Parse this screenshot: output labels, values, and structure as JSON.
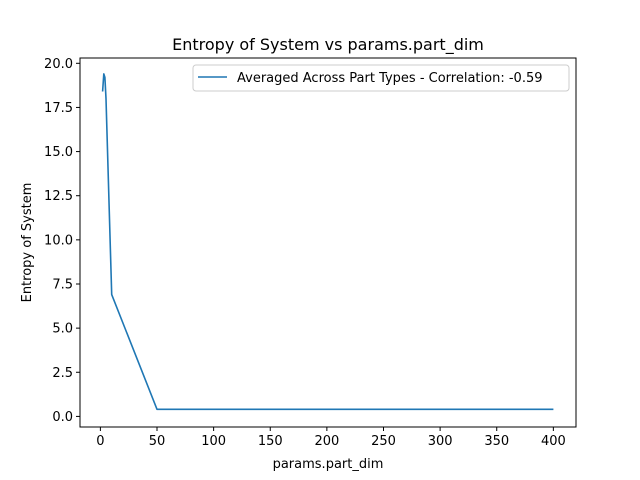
{
  "chart_data": {
    "type": "line",
    "title": "Entropy of System vs params.part_dim",
    "xlabel": "params.part_dim",
    "ylabel": "Entropy of System",
    "xlim": [
      -18,
      420
    ],
    "ylim": [
      -0.6,
      20.3
    ],
    "xticks": [
      0,
      50,
      100,
      150,
      200,
      250,
      300,
      350,
      400
    ],
    "xtick_labels": [
      "0",
      "50",
      "100",
      "150",
      "200",
      "250",
      "300",
      "350",
      "400"
    ],
    "yticks": [
      0.0,
      2.5,
      5.0,
      7.5,
      10.0,
      12.5,
      15.0,
      17.5,
      20.0
    ],
    "ytick_labels": [
      "0.0",
      "2.5",
      "5.0",
      "7.5",
      "10.0",
      "12.5",
      "15.0",
      "17.5",
      "20.0"
    ],
    "grid": false,
    "legend_position": "top-right",
    "series": [
      {
        "name": "Averaged Across Part Types - Correlation: -0.59",
        "color": "#1f77b4",
        "x": [
          2,
          3,
          4,
          5,
          10,
          50,
          100,
          200,
          400
        ],
        "y": [
          18.4,
          19.4,
          19.2,
          18.0,
          6.9,
          0.4,
          0.4,
          0.4,
          0.4
        ]
      }
    ]
  }
}
